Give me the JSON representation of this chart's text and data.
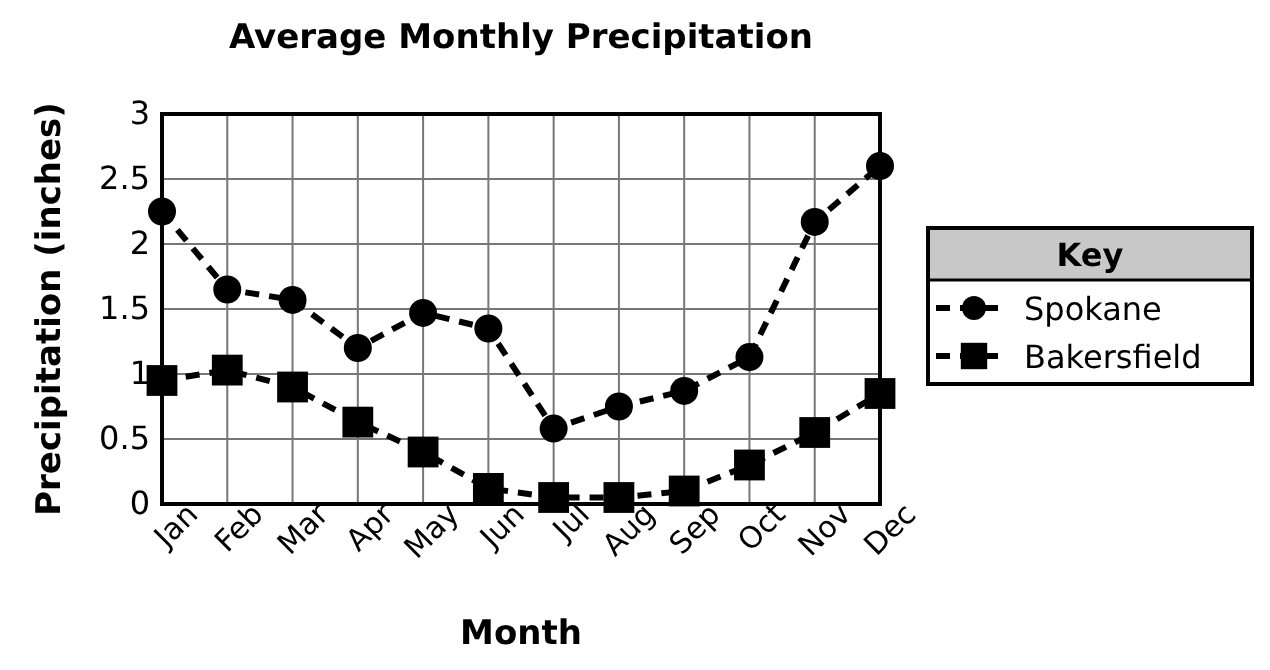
{
  "chart_data": {
    "type": "line",
    "title": "Average Monthly Precipitation",
    "xlabel": "Month",
    "ylabel": "Precipitation (inches)",
    "legend_title": "Key",
    "categories": [
      "Jan",
      "Feb",
      "Mar",
      "Apr",
      "May",
      "Jun",
      "Jul",
      "Aug",
      "Sep",
      "Oct",
      "Nov",
      "Dec"
    ],
    "series": [
      {
        "name": "Spokane",
        "color": "#000000",
        "marker": "circle",
        "values": [
          2.25,
          1.65,
          1.57,
          1.2,
          1.47,
          1.35,
          0.58,
          0.75,
          0.87,
          1.13,
          2.17,
          2.6
        ]
      },
      {
        "name": "Bakersfield",
        "color": "#000000",
        "marker": "square",
        "values": [
          0.95,
          1.03,
          0.9,
          0.63,
          0.4,
          0.12,
          0.05,
          0.05,
          0.1,
          0.3,
          0.55,
          0.85
        ]
      }
    ],
    "ylim": [
      0,
      3
    ],
    "yticks": [
      0,
      0.5,
      1,
      1.5,
      2,
      2.5,
      3
    ],
    "grid": true,
    "legend": "right",
    "line_style": "dashed"
  }
}
